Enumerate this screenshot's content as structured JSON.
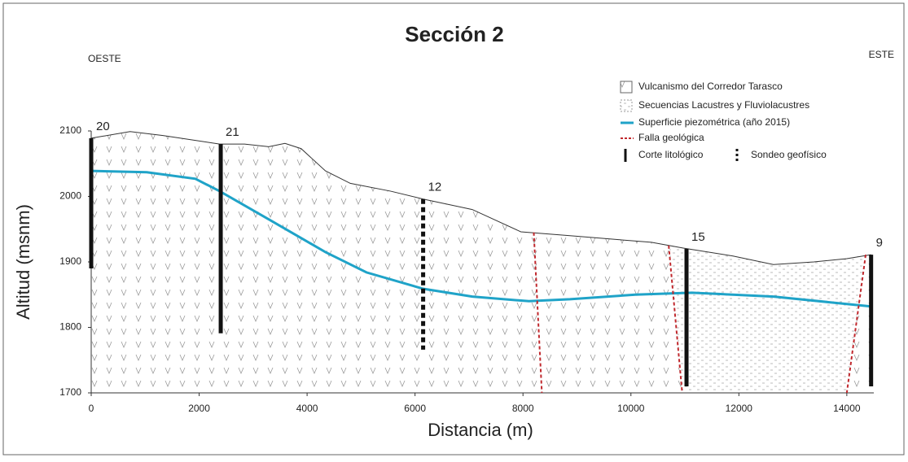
{
  "chart_data": {
    "type": "line",
    "title": "Sección 2",
    "west_label": "OESTE",
    "east_label": "ESTE",
    "xlabel": "Distancia (m)",
    "ylabel": "Altitud (msnm)",
    "xlim": [
      0,
      14500
    ],
    "ylim": [
      1700,
      2100
    ],
    "xticks": [
      0,
      2000,
      4000,
      6000,
      8000,
      10000,
      12000,
      14000
    ],
    "yticks": [
      1700,
      1800,
      1900,
      2000,
      2100
    ],
    "series": [
      {
        "color": "#333333",
        "x": [
          0,
          720,
          1330,
          2380,
          2840,
          3290,
          3590,
          3890,
          4340,
          4800,
          5550,
          6150,
          7060,
          7960,
          8870,
          9770,
          10380,
          10980,
          11890,
          12640,
          13390,
          14000,
          14450
        ],
        "values": [
          2089,
          2099,
          2093,
          2080,
          2080,
          2076,
          2081,
          2073,
          2039,
          2020,
          2008,
          1996,
          1980,
          1946,
          1940,
          1934,
          1930,
          1921,
          1909,
          1896,
          1900,
          1905,
          1911
        ]
      },
      {
        "name": "Superficie piezométrica (año 2015)",
        "color": "#1fa3c8",
        "x": [
          0,
          1030,
          1930,
          2380,
          3290,
          4340,
          5100,
          6150,
          7060,
          8110,
          8870,
          10080,
          11130,
          12640,
          14450
        ],
        "values": [
          2039,
          2037,
          2027,
          2008,
          1965,
          1915,
          1884,
          1859,
          1847,
          1840,
          1843,
          1850,
          1853,
          1847,
          1832
        ]
      }
    ],
    "boreholes": [
      {
        "label": "20",
        "x": 0,
        "top": 2089,
        "bottom": 1890,
        "style": "solid"
      },
      {
        "label": "21",
        "x": 2400,
        "top": 2080,
        "bottom": 1791,
        "style": "solid"
      },
      {
        "label": "12",
        "x": 6150,
        "top": 1996,
        "bottom": 1766,
        "style": "dotted"
      },
      {
        "label": "15",
        "x": 11030,
        "top": 1920,
        "bottom": 1710,
        "style": "solid"
      },
      {
        "label": "9",
        "x": 14450,
        "top": 1911,
        "bottom": 1710,
        "style": "solid"
      }
    ],
    "faults": [
      {
        "x": [
          8200,
          8350
        ],
        "values": [
          1945,
          1700
        ]
      },
      {
        "x": [
          10700,
          10950
        ],
        "values": [
          1925,
          1700
        ]
      },
      {
        "x": [
          14350,
          14000
        ],
        "values": [
          1911,
          1700
        ]
      }
    ],
    "fault_color": "#c0282d",
    "legend": [
      "Vulcanismo del Corredor Tarasco",
      "Secuencias Lacustres y Fluviolacustres",
      "Falla geológica",
      "Corte litológico",
      "Sondeo geofísico"
    ]
  }
}
